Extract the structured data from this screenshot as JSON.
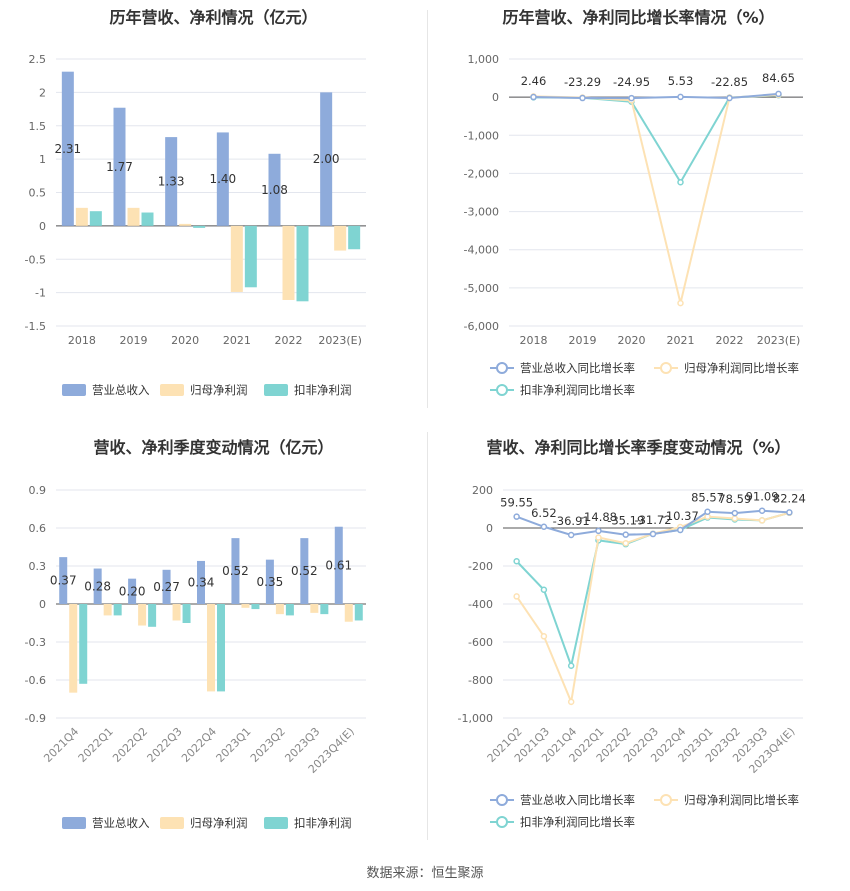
{
  "footer": {
    "source": "数据来源：恒生聚源"
  },
  "colors": {
    "revenue": "#8eabdb",
    "net_profit": "#fde2b4",
    "deducted": "#7fd4d2",
    "revenue_line": "#8eabdb",
    "net_line": "#fde2b4",
    "deducted_line": "#7fd4d2",
    "grid": "#e3e6ee",
    "axis_text": "#666666",
    "label_text": "#333333"
  },
  "chart_data": [
    {
      "id": "annual-bar",
      "type": "bar",
      "title": "历年营收、净利情况（亿元）",
      "categories": [
        "2018",
        "2019",
        "2020",
        "2021",
        "2022",
        "2023(E)"
      ],
      "series": [
        {
          "name": "营业总收入",
          "values": [
            2.31,
            1.77,
            1.33,
            1.4,
            1.08,
            2.0
          ],
          "labels": [
            "2.31",
            "1.77",
            "1.33",
            "1.40",
            "1.08",
            "2.00"
          ]
        },
        {
          "name": "归母净利润",
          "values": [
            0.27,
            0.27,
            0.03,
            -0.99,
            -1.11,
            -0.37
          ]
        },
        {
          "name": "扣非净利润",
          "values": [
            0.22,
            0.2,
            -0.03,
            -0.92,
            -1.13,
            -0.35
          ]
        }
      ],
      "ylim": [
        -1.5,
        2.5
      ],
      "yticks": [
        -1.5,
        -1,
        -0.5,
        0,
        0.5,
        1,
        1.5,
        2,
        2.5
      ],
      "ytick_labels": [
        "-1.5",
        "-1",
        "-0.5",
        "0",
        "0.5",
        "1",
        "1.5",
        "2",
        "2.5"
      ],
      "grid": true,
      "legend": "bottom"
    },
    {
      "id": "annual-line",
      "type": "line",
      "title": "历年营收、净利同比增长率情况（%）",
      "categories": [
        "2018",
        "2019",
        "2020",
        "2021",
        "2022",
        "2023(E)"
      ],
      "series": [
        {
          "name": "营业总收入同比增长率",
          "values": [
            2.46,
            -23.29,
            -24.95,
            5.53,
            -22.85,
            84.65
          ],
          "labels": [
            "2.46",
            "-23.29",
            "-24.95",
            "5.53",
            "-22.85",
            "84.65"
          ]
        },
        {
          "name": "归母净利润同比增长率",
          "values": [
            20,
            -10,
            -85,
            -5400,
            -10,
            60
          ]
        },
        {
          "name": "扣非净利润同比增长率",
          "values": [
            -5,
            -15,
            -120,
            -2230,
            -10,
            50
          ]
        }
      ],
      "ylim": [
        -6000,
        1000
      ],
      "yticks": [
        -6000,
        -5000,
        -4000,
        -3000,
        -2000,
        -1000,
        0,
        1000
      ],
      "ytick_labels": [
        "-6,000",
        "-5,000",
        "-4,000",
        "-3,000",
        "-2,000",
        "-1,000",
        "0",
        "1,000"
      ],
      "grid": true,
      "legend": "bottom"
    },
    {
      "id": "quarter-bar",
      "type": "bar",
      "title": "营收、净利季度变动情况（亿元）",
      "categories": [
        "2021Q4",
        "2022Q1",
        "2022Q2",
        "2022Q3",
        "2022Q4",
        "2023Q1",
        "2023Q2",
        "2023Q3",
        "2023Q4(E)"
      ],
      "series": [
        {
          "name": "营业总收入",
          "values": [
            0.37,
            0.28,
            0.2,
            0.27,
            0.34,
            0.52,
            0.35,
            0.52,
            0.61
          ],
          "labels": [
            "0.37",
            "0.28",
            "0.20",
            "0.27",
            "0.34",
            "0.52",
            "0.35",
            "0.52",
            "0.61"
          ]
        },
        {
          "name": "归母净利润",
          "values": [
            -0.7,
            -0.09,
            -0.17,
            -0.13,
            -0.69,
            -0.03,
            -0.08,
            -0.07,
            -0.14
          ]
        },
        {
          "name": "扣非净利润",
          "values": [
            -0.63,
            -0.09,
            -0.18,
            -0.15,
            -0.69,
            -0.04,
            -0.09,
            -0.08,
            -0.13
          ]
        }
      ],
      "ylim": [
        -0.9,
        0.9
      ],
      "yticks": [
        -0.9,
        -0.6,
        -0.3,
        0,
        0.3,
        0.6,
        0.9
      ],
      "ytick_labels": [
        "-0.9",
        "-0.6",
        "-0.3",
        "0",
        "0.3",
        "0.6",
        "0.9"
      ],
      "grid": true,
      "legend": "bottom"
    },
    {
      "id": "quarter-line",
      "type": "line",
      "title": "营收、净利同比增长率季度变动情况（%）",
      "categories": [
        "2021Q2",
        "2021Q3",
        "2021Q4",
        "2022Q1",
        "2022Q2",
        "2022Q3",
        "2022Q4",
        "2023Q1",
        "2023Q2",
        "2023Q3",
        "2023Q4(E)"
      ],
      "series": [
        {
          "name": "营业总收入同比增长率",
          "values": [
            59.55,
            6.52,
            -36.91,
            -14.88,
            -35.19,
            -31.72,
            -10.37,
            85.57,
            78.59,
            91.09,
            82.24
          ],
          "labels": [
            "59.55",
            "6.52",
            "-36.91",
            "-14.88",
            "-35.19",
            "-31.72",
            "-10.37",
            "85.57",
            "78.59",
            "91.09",
            "82.24"
          ]
        },
        {
          "name": "归母净利润同比增长率",
          "values": [
            -360,
            -570,
            -915,
            -50,
            -80,
            -30,
            5,
            60,
            50,
            40,
            80
          ]
        },
        {
          "name": "扣非净利润同比增长率",
          "values": [
            -175,
            -325,
            -725,
            -65,
            -85,
            -30,
            -10,
            55,
            45,
            40,
            80
          ]
        }
      ],
      "ylim": [
        -1000,
        200
      ],
      "yticks": [
        -1000,
        -800,
        -600,
        -400,
        -200,
        0,
        200
      ],
      "ytick_labels": [
        "-1,000",
        "-800",
        "-600",
        "-400",
        "-200",
        "0",
        "200"
      ],
      "grid": true,
      "legend": "bottom"
    }
  ]
}
